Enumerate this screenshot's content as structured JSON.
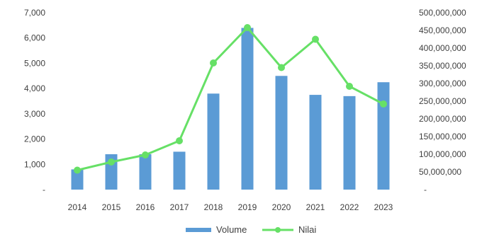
{
  "chart_data": {
    "type": "bar+line",
    "categories": [
      "2014",
      "2015",
      "2016",
      "2017",
      "2018",
      "2019",
      "2020",
      "2021",
      "2022",
      "2023"
    ],
    "series": [
      {
        "name": "Volume",
        "type": "bar",
        "axis": "left",
        "color": "#5B9BD5",
        "values": [
          800,
          1400,
          1400,
          1500,
          3800,
          6400,
          4500,
          3750,
          3700,
          4250
        ]
      },
      {
        "name": "Nilai",
        "type": "line",
        "axis": "right",
        "color": "#66E066",
        "values": [
          55000000,
          78000000,
          98000000,
          138000000,
          358000000,
          458000000,
          345000000,
          425000000,
          292000000,
          242000000
        ]
      }
    ],
    "y_left": {
      "min": 0,
      "max": 7000,
      "tick_values": [
        0,
        1000,
        2000,
        3000,
        4000,
        5000,
        6000,
        7000
      ],
      "tick_labels": [
        "-",
        "1,000",
        "2,000",
        "3,000",
        "4,000",
        "5,000",
        "6,000",
        "7,000"
      ]
    },
    "y_right": {
      "min": 0,
      "max": 500000000,
      "tick_values": [
        0,
        50000000,
        100000000,
        150000000,
        200000000,
        250000000,
        300000000,
        350000000,
        400000000,
        450000000,
        500000000
      ],
      "tick_labels": [
        "-",
        "50,000,000",
        "100,000,000",
        "150,000,000",
        "200,000,000",
        "250,000,000",
        "300,000,000",
        "350,000,000",
        "400,000,000",
        "450,000,000",
        "500,000,000"
      ]
    },
    "grid": false,
    "legend": "bottom",
    "legend_items": [
      {
        "label": "Volume",
        "symbol": "bar"
      },
      {
        "label": "Nilai",
        "symbol": "line-marker"
      }
    ]
  }
}
